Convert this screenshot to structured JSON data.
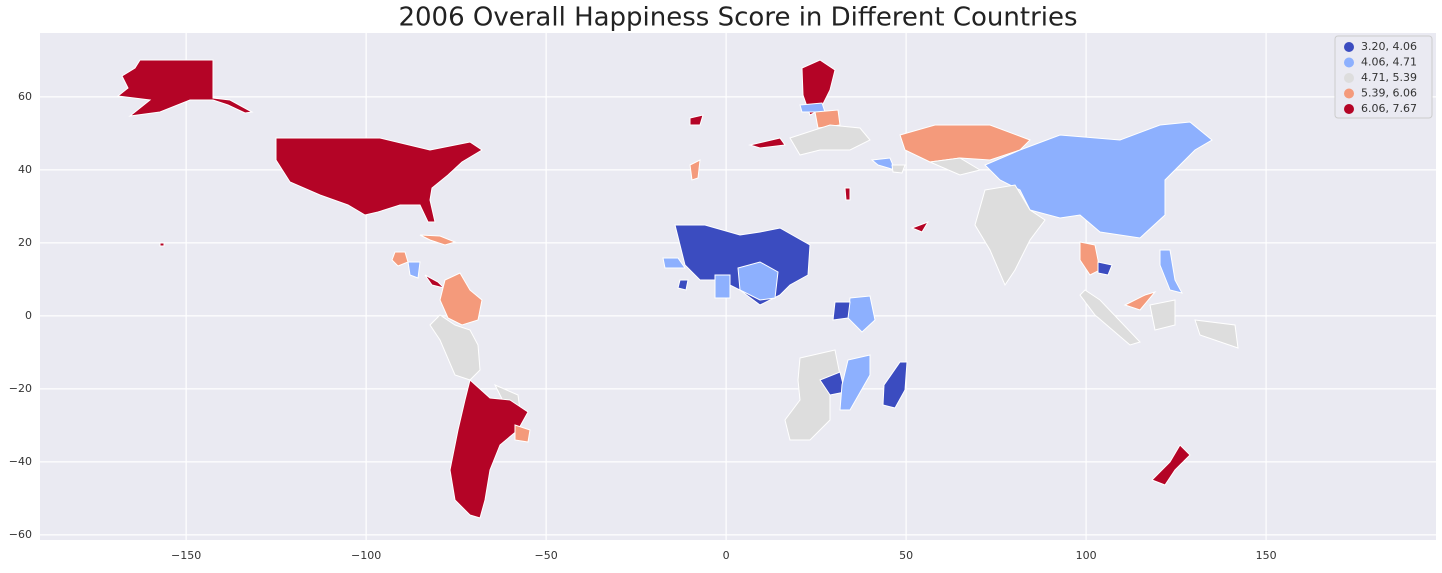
{
  "chart_data": {
    "type": "choropleth",
    "title": "2006 Overall Happiness Score in Different Countries",
    "xlim": [
      -190.6,
      197.2
    ],
    "ylim": [
      -61.4,
      77.5
    ],
    "xticks": [
      {
        "value": -150,
        "label": "−150"
      },
      {
        "value": -100,
        "label": "−100"
      },
      {
        "value": -50,
        "label": "−50"
      },
      0,
      50,
      100,
      150
    ],
    "yticks": [
      {
        "value": -60,
        "label": "−60"
      },
      {
        "value": -40,
        "label": "−40"
      },
      {
        "value": -20,
        "label": "−20"
      },
      0,
      20,
      40,
      60
    ],
    "grid": true,
    "legend_position": "upper right",
    "legend": [
      {
        "label": "3.20, 4.06",
        "color": "#3b4cc0"
      },
      {
        "label": "4.06, 4.71",
        "color": "#8db0fe"
      },
      {
        "label": "4.71, 5.39",
        "color": "#dddddd"
      },
      {
        "label": "5.39, 6.06",
        "color": "#f49a7b"
      },
      {
        "label": "6.06, 7.67",
        "color": "#b40426"
      }
    ]
  }
}
